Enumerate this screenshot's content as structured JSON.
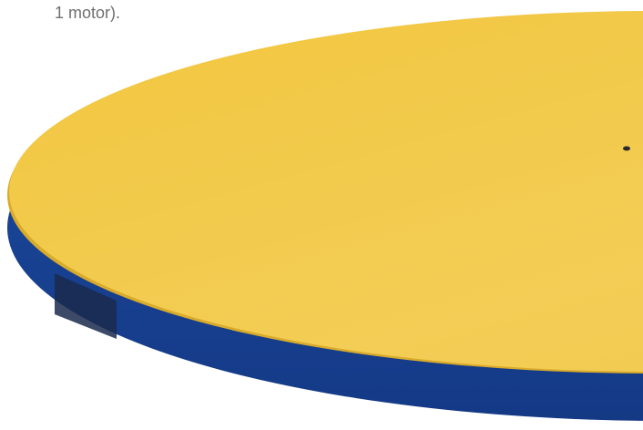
{
  "caption": "1 motor)."
}
